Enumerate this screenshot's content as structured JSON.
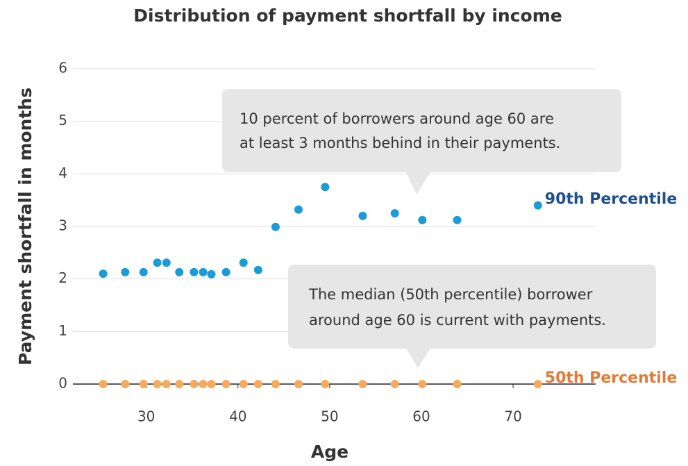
{
  "chart_data": {
    "type": "scatter",
    "title": "Distribution of payment shortfall by income",
    "x_label": "Age",
    "y_label": "Payment shortfall in months",
    "xlim": [
      22,
      79
    ],
    "xticks": [
      30,
      40,
      50,
      60,
      70
    ],
    "ylim": [
      0,
      6
    ],
    "yticks": [
      0,
      1,
      2,
      3,
      4,
      5,
      6
    ],
    "grid": true,
    "x": [
      25.3,
      27.7,
      29.7,
      31.2,
      32.2,
      33.6,
      35.2,
      36.2,
      37.1,
      38.7,
      40.6,
      42.2,
      44.1,
      46.6,
      49.5,
      53.6,
      57.1,
      60.1,
      63.9,
      72.7
    ],
    "series": [
      {
        "name": "90th Percentile",
        "color": "#1b9bd7",
        "label_color": "#1f4f8f",
        "values": [
          2.1,
          2.13,
          2.13,
          2.31,
          2.31,
          2.13,
          2.13,
          2.13,
          2.09,
          2.13,
          2.31,
          2.17,
          2.99,
          3.32,
          3.75,
          3.2,
          3.25,
          3.12,
          3.12,
          3.4
        ]
      },
      {
        "name": "50th Percentile",
        "color": "#f6aa5e",
        "label_color": "#e07b39",
        "values": [
          0,
          0,
          0,
          0,
          0,
          0,
          0,
          0,
          0,
          0,
          0,
          0,
          0,
          0,
          0,
          0,
          0,
          0,
          0,
          0
        ]
      }
    ],
    "annotations": [
      {
        "lines": [
          "10 percent of borrowers around age 60 are",
          "at least 3 months behind in their payments."
        ]
      },
      {
        "lines": [
          "The median (50th percentile) borrower",
          "around age 60 is current with payments."
        ]
      }
    ]
  }
}
